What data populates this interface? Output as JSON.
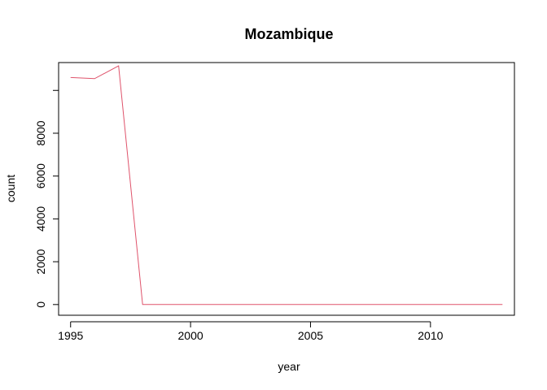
{
  "chart_data": {
    "type": "line",
    "title": "Mozambique",
    "xlabel": "year",
    "ylabel": "count",
    "xlim": [
      1994.5,
      2013.5
    ],
    "ylim": [
      -500,
      11300
    ],
    "x_ticks": [
      1995,
      2000,
      2005,
      2010
    ],
    "y_ticks": [
      0,
      2000,
      4000,
      6000,
      8000,
      10000
    ],
    "y_tick_labels": [
      "0",
      "2000",
      "4000",
      "6000",
      "8000",
      ""
    ],
    "grid": false,
    "legend": "none",
    "series": [
      {
        "color": "#DF536B",
        "x": [
          1995,
          1996,
          1997,
          1998,
          1999,
          2000,
          2001,
          2002,
          2003,
          2004,
          2005,
          2006,
          2007,
          2008,
          2009,
          2010,
          2011,
          2012,
          2013
        ],
        "y": [
          10600,
          10550,
          11150,
          0,
          0,
          0,
          0,
          0,
          0,
          0,
          0,
          0,
          0,
          0,
          0,
          0,
          0,
          0,
          0
        ]
      }
    ]
  }
}
